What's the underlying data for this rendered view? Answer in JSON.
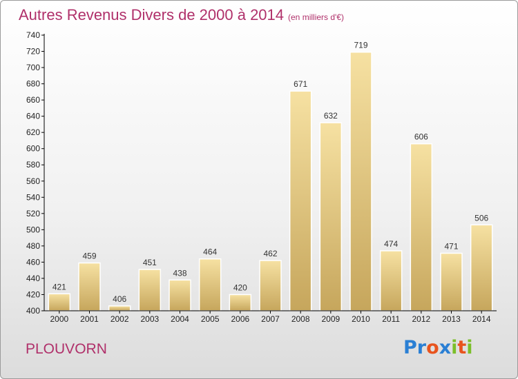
{
  "title": "Autres Revenus Divers de 2000 à 2014",
  "unit_note": "(en milliers d'€)",
  "commune": "PLOUVORN",
  "logo": {
    "letters": [
      "P",
      "r",
      "o",
      "x",
      "i",
      "t",
      "i"
    ],
    "colors": [
      "#2a7fd4",
      "#2a7fd4",
      "#e8541e",
      "#2a7fd4",
      "#7bbf2a",
      "#e8541e",
      "#7bbf2a"
    ]
  },
  "colors": {
    "title": "#b0306a",
    "bar_light": "#f4dc9a",
    "bar_dark": "#c8a860",
    "axis": "#000000"
  },
  "chart_data": {
    "type": "bar",
    "title": "Autres Revenus Divers de 2000 à 2014",
    "xlabel": "",
    "ylabel": "",
    "categories": [
      "2000",
      "2001",
      "2002",
      "2003",
      "2004",
      "2005",
      "2006",
      "2007",
      "2008",
      "2009",
      "2010",
      "2011",
      "2012",
      "2013",
      "2014"
    ],
    "values": [
      421,
      459,
      406,
      451,
      438,
      464,
      420,
      462,
      671,
      632,
      719,
      474,
      606,
      471,
      506
    ],
    "ylim": [
      400,
      740
    ],
    "yticks": [
      400,
      420,
      440,
      460,
      480,
      500,
      520,
      540,
      560,
      580,
      600,
      620,
      640,
      660,
      680,
      700,
      720,
      740
    ],
    "grid": false,
    "data_labels": true
  }
}
